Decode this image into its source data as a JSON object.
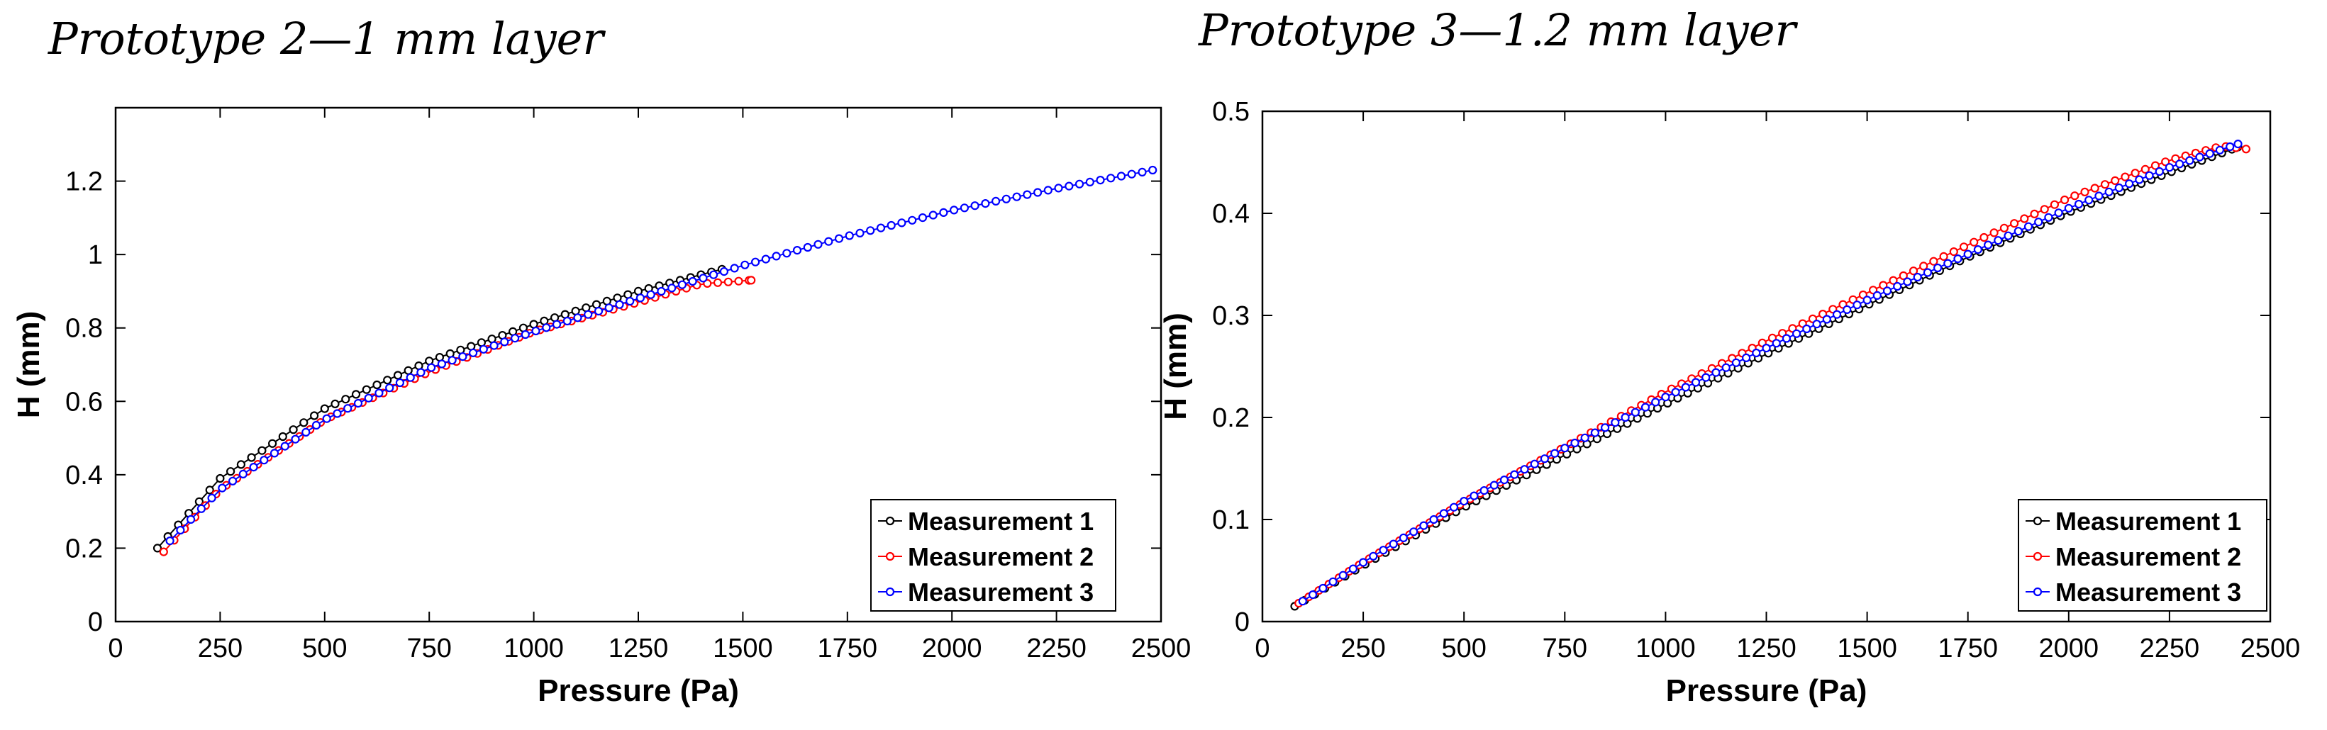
{
  "chart_data": [
    {
      "type": "line",
      "title": "Prototype 2—1 mm layer",
      "xlabel": "Pressure (Pa)",
      "ylabel": "H (mm)",
      "xlim": [
        0,
        2500
      ],
      "ylim": [
        0,
        1.4
      ],
      "xticks": [
        0,
        250,
        500,
        750,
        1000,
        1250,
        1500,
        1750,
        2000,
        2250,
        2500
      ],
      "xtick_labels": [
        "0",
        "250",
        "500",
        "750",
        "1000",
        "1250",
        "1500",
        "1750",
        "2000",
        "2250",
        "2500"
      ],
      "yticks": [
        0,
        0.2,
        0.4,
        0.6,
        0.8,
        1,
        1.2
      ],
      "ytick_labels": [
        "0",
        "0.2",
        "0.4",
        "0.6",
        "0.8",
        "1",
        "1.2"
      ],
      "grid": false,
      "legend_position": "bottom-right",
      "series": [
        {
          "name": "Measurement 1",
          "color": "#000000",
          "marker": "circle",
          "x": [
            100,
            250,
            500,
            750,
            1000,
            1250,
            1450
          ],
          "y": [
            0.2,
            0.39,
            0.58,
            0.71,
            0.81,
            0.9,
            0.96
          ]
        },
        {
          "name": "Measurement 2",
          "color": "#ff0000",
          "marker": "circle",
          "x": [
            115,
            250,
            500,
            750,
            1000,
            1250,
            1400,
            1520
          ],
          "y": [
            0.19,
            0.36,
            0.55,
            0.68,
            0.79,
            0.87,
            0.92,
            0.93
          ]
        },
        {
          "name": "Measurement 3",
          "color": "#0000ff",
          "marker": "circle",
          "x": [
            130,
            250,
            500,
            750,
            1000,
            1250,
            1500,
            1750,
            2000,
            2250,
            2480
          ],
          "y": [
            0.22,
            0.36,
            0.55,
            0.69,
            0.79,
            0.88,
            0.97,
            1.05,
            1.12,
            1.18,
            1.23
          ]
        }
      ]
    },
    {
      "type": "line",
      "title": "Prototype 3—1.2 mm layer",
      "xlabel": "Pressure (Pa)",
      "ylabel": "H (mm)",
      "xlim": [
        0,
        2500
      ],
      "ylim": [
        0,
        0.5
      ],
      "xticks": [
        0,
        250,
        500,
        750,
        1000,
        1250,
        1500,
        1750,
        2000,
        2250,
        2500
      ],
      "xtick_labels": [
        "0",
        "250",
        "500",
        "750",
        "1000",
        "1250",
        "1500",
        "1750",
        "2000",
        "2250",
        "2500"
      ],
      "yticks": [
        0,
        0.1,
        0.2,
        0.3,
        0.4,
        0.5
      ],
      "ytick_labels": [
        "0",
        "0.1",
        "0.2",
        "0.3",
        "0.4",
        "0.5"
      ],
      "grid": false,
      "legend_position": "bottom-right",
      "series": [
        {
          "name": "Measurement 1",
          "color": "#000000",
          "marker": "circle",
          "x": [
            80,
            250,
            500,
            750,
            1000,
            1250,
            1500,
            1750,
            2000,
            2250,
            2420
          ],
          "y": [
            0.015,
            0.055,
            0.112,
            0.163,
            0.213,
            0.262,
            0.31,
            0.357,
            0.401,
            0.44,
            0.465
          ]
        },
        {
          "name": "Measurement 2",
          "color": "#ff0000",
          "marker": "circle",
          "x": [
            90,
            250,
            500,
            750,
            1000,
            1250,
            1500,
            1750,
            2000,
            2250,
            2380,
            2440
          ],
          "y": [
            0.018,
            0.058,
            0.117,
            0.171,
            0.225,
            0.275,
            0.322,
            0.369,
            0.415,
            0.452,
            0.466,
            0.463
          ]
        },
        {
          "name": "Measurement 3",
          "color": "#0000ff",
          "marker": "circle",
          "x": [
            100,
            250,
            500,
            750,
            1000,
            1250,
            1500,
            1750,
            2000,
            2250,
            2420
          ],
          "y": [
            0.02,
            0.058,
            0.118,
            0.17,
            0.22,
            0.268,
            0.315,
            0.36,
            0.405,
            0.445,
            0.468
          ]
        }
      ]
    }
  ]
}
